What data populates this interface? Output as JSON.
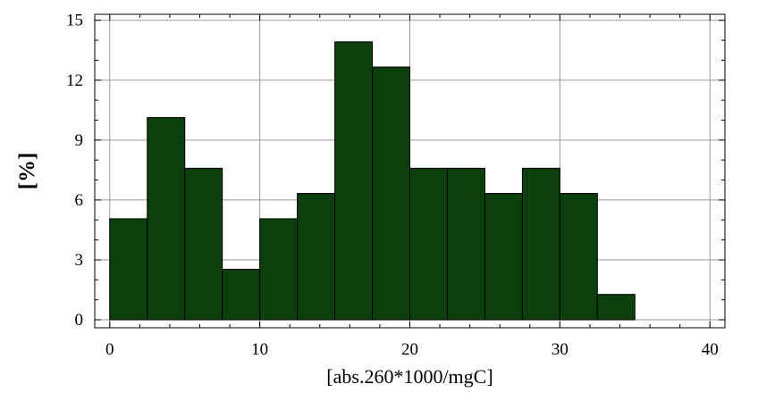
{
  "chart_data": {
    "type": "bar",
    "subtype": "histogram",
    "bins": [
      {
        "x0": 0,
        "x1": 2.5,
        "value": 5.06
      },
      {
        "x0": 2.5,
        "x1": 5,
        "value": 10.13
      },
      {
        "x0": 5,
        "x1": 7.5,
        "value": 7.59
      },
      {
        "x0": 7.5,
        "x1": 10,
        "value": 2.53
      },
      {
        "x0": 10,
        "x1": 12.5,
        "value": 5.06
      },
      {
        "x0": 12.5,
        "x1": 15,
        "value": 6.33
      },
      {
        "x0": 15,
        "x1": 17.5,
        "value": 13.92
      },
      {
        "x0": 17.5,
        "x1": 20,
        "value": 12.66
      },
      {
        "x0": 20,
        "x1": 22.5,
        "value": 7.59
      },
      {
        "x0": 22.5,
        "x1": 25,
        "value": 7.59
      },
      {
        "x0": 25,
        "x1": 27.5,
        "value": 6.33
      },
      {
        "x0": 27.5,
        "x1": 30,
        "value": 7.59
      },
      {
        "x0": 30,
        "x1": 32.5,
        "value": 6.33
      },
      {
        "x0": 32.5,
        "x1": 35,
        "value": 1.27
      },
      {
        "x0": 35,
        "x1": 37.5,
        "value": 0
      },
      {
        "x0": 37.5,
        "x1": 40,
        "value": 0
      }
    ],
    "xlabel": "[abs.260*1000/mgC]",
    "ylabel": "[%]",
    "xlim": [
      -1,
      41
    ],
    "ylim": [
      -0.4,
      15.3
    ],
    "xticks": [
      "0",
      "10",
      "20",
      "30",
      "40"
    ],
    "yticks": [
      "0",
      "3",
      "6",
      "9",
      "12",
      "15"
    ],
    "grid": true,
    "bar_color": "#0b3f0b",
    "bar_edge_color": "#000000",
    "grid_color": "#9a9a9a"
  }
}
